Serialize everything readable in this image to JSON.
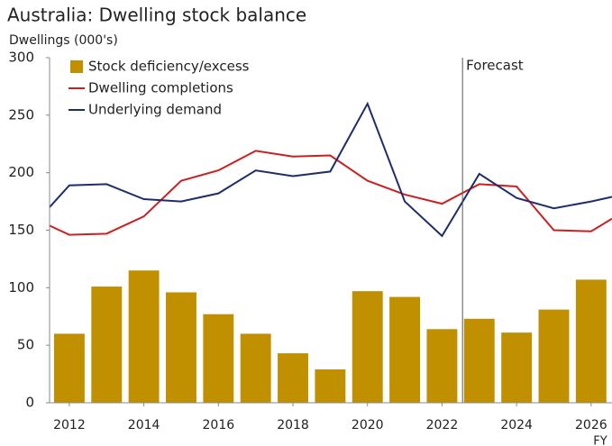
{
  "chart_data": {
    "type": "bar_line",
    "title": "Australia: Dwelling stock balance",
    "y_label": "Dwellings (000's)",
    "x_label": "FY",
    "annotation": "Forecast",
    "forecast_x": 2022.55,
    "x": [
      2011.47,
      2012,
      2013,
      2014,
      2015,
      2016,
      2017,
      2018,
      2019,
      2020,
      2021,
      2022,
      2023,
      2024,
      2025,
      2026,
      2026.56
    ],
    "xlim": [
      2011.47,
      2026.56
    ],
    "xticks": [
      2012,
      2014,
      2016,
      2018,
      2020,
      2022,
      2024,
      2026
    ],
    "ylim": [
      0,
      300
    ],
    "yticks": [
      0,
      50,
      100,
      150,
      200,
      250,
      300
    ],
    "series": [
      {
        "name": "Stock deficiency/excess",
        "color": "#c09000",
        "kind": "bar",
        "values": [
          null,
          60,
          101,
          115,
          96,
          77,
          60,
          43,
          29,
          97,
          92,
          64,
          73,
          61,
          81,
          107,
          null
        ]
      },
      {
        "name": "Dwelling completions",
        "color": "#cc1f1f",
        "kind": "line",
        "values": [
          154,
          146,
          147,
          162,
          193,
          202,
          219,
          214,
          215,
          193,
          181,
          173,
          190,
          188,
          150,
          149,
          160
        ]
      },
      {
        "name": "Underlying demand",
        "color": "#1f2d6b",
        "kind": "line",
        "values": [
          170,
          189,
          190,
          177,
          175,
          182,
          202,
          197,
          201,
          260,
          175,
          145,
          199,
          178,
          169,
          175,
          179
        ]
      }
    ]
  }
}
